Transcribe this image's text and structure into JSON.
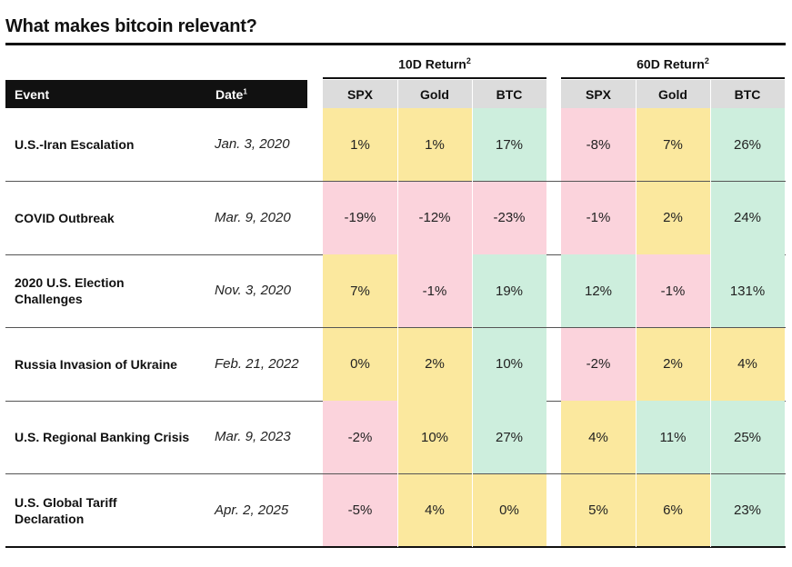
{
  "title": "What makes bitcoin relevant?",
  "groups": {
    "ten_day": {
      "label": "10D Return",
      "footnote": "2"
    },
    "sixty_day": {
      "label": "60D Return",
      "footnote": "2"
    }
  },
  "header": {
    "event": "Event",
    "date": "Date",
    "date_footnote": "1"
  },
  "columns": [
    "SPX",
    "Gold",
    "BTC",
    "SPX",
    "Gold",
    "BTC"
  ],
  "colors": {
    "yellow": "#fbe89e",
    "pink": "#fbd3dc",
    "green": "#cdeedd"
  },
  "rows": [
    {
      "event": [
        "U.S.-Iran Escalation"
      ],
      "date": "Jan. 3, 2020",
      "values": [
        "1%",
        "1%",
        "17%",
        "-8%",
        "7%",
        "26%"
      ],
      "colors": [
        "yellow",
        "yellow",
        "green",
        "pink",
        "yellow",
        "green"
      ]
    },
    {
      "event": [
        "COVID Outbreak"
      ],
      "date": "Mar. 9, 2020",
      "values": [
        "-19%",
        "-12%",
        "-23%",
        "-1%",
        "2%",
        "24%"
      ],
      "colors": [
        "pink",
        "pink",
        "pink",
        "pink",
        "yellow",
        "green"
      ]
    },
    {
      "event": [
        "2020 U.S. Election",
        "Challenges"
      ],
      "date": "Nov. 3, 2020",
      "values": [
        "7%",
        "-1%",
        "19%",
        "12%",
        "-1%",
        "131%"
      ],
      "colors": [
        "yellow",
        "pink",
        "green",
        "green",
        "pink",
        "green"
      ]
    },
    {
      "event": [
        "Russia Invasion of Ukraine"
      ],
      "date": "Feb. 21, 2022",
      "values": [
        "0%",
        "2%",
        "10%",
        "-2%",
        "2%",
        "4%"
      ],
      "colors": [
        "yellow",
        "yellow",
        "green",
        "pink",
        "yellow",
        "yellow"
      ]
    },
    {
      "event": [
        "U.S. Regional Banking Crisis"
      ],
      "date": "Mar. 9, 2023",
      "values": [
        "-2%",
        "10%",
        "27%",
        "4%",
        "11%",
        "25%"
      ],
      "colors": [
        "pink",
        "yellow",
        "green",
        "yellow",
        "green",
        "green"
      ]
    },
    {
      "event": [
        "U.S. Global Tariff",
        "Declaration"
      ],
      "date": "Apr. 2, 2025",
      "values": [
        "-5%",
        "4%",
        "0%",
        "5%",
        "6%",
        "23%"
      ],
      "colors": [
        "pink",
        "yellow",
        "yellow",
        "yellow",
        "yellow",
        "green"
      ]
    }
  ]
}
